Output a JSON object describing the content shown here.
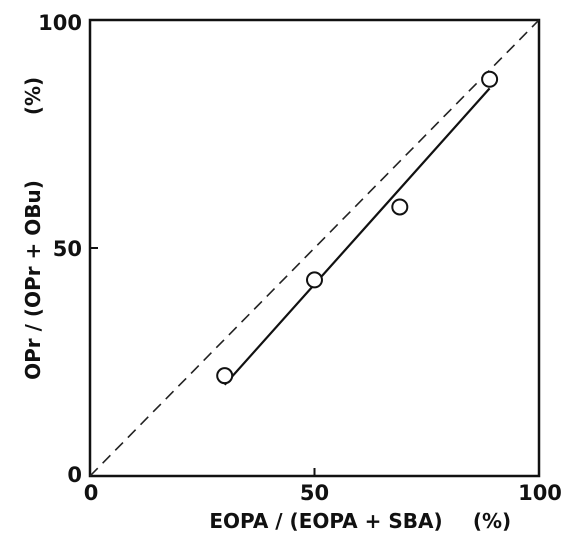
{
  "chart_data": {
    "type": "scatter",
    "xlabel": "EOPA / (EOPA + SBA)",
    "xunit": "(%)",
    "ylabel": "OPr / (OPr + OBu)",
    "yunit": "(%)",
    "xlim": [
      0,
      100
    ],
    "ylim": [
      0,
      100
    ],
    "x_ticks": [
      "0",
      "50",
      "100"
    ],
    "y_ticks": [
      "0",
      "50",
      "100"
    ],
    "grid": false,
    "series": [
      {
        "marker": "open-circle",
        "points": [
          {
            "x": 30,
            "y": 22
          },
          {
            "x": 50,
            "y": 43
          },
          {
            "x": 69,
            "y": 59
          },
          {
            "x": 89,
            "y": 87
          }
        ]
      }
    ],
    "fit_line": {
      "x": [
        30,
        89
      ],
      "y": [
        20,
        85
      ],
      "style": "solid"
    },
    "reference_line": {
      "x": [
        0,
        100
      ],
      "y": [
        0,
        100
      ],
      "style": "dashed"
    }
  }
}
